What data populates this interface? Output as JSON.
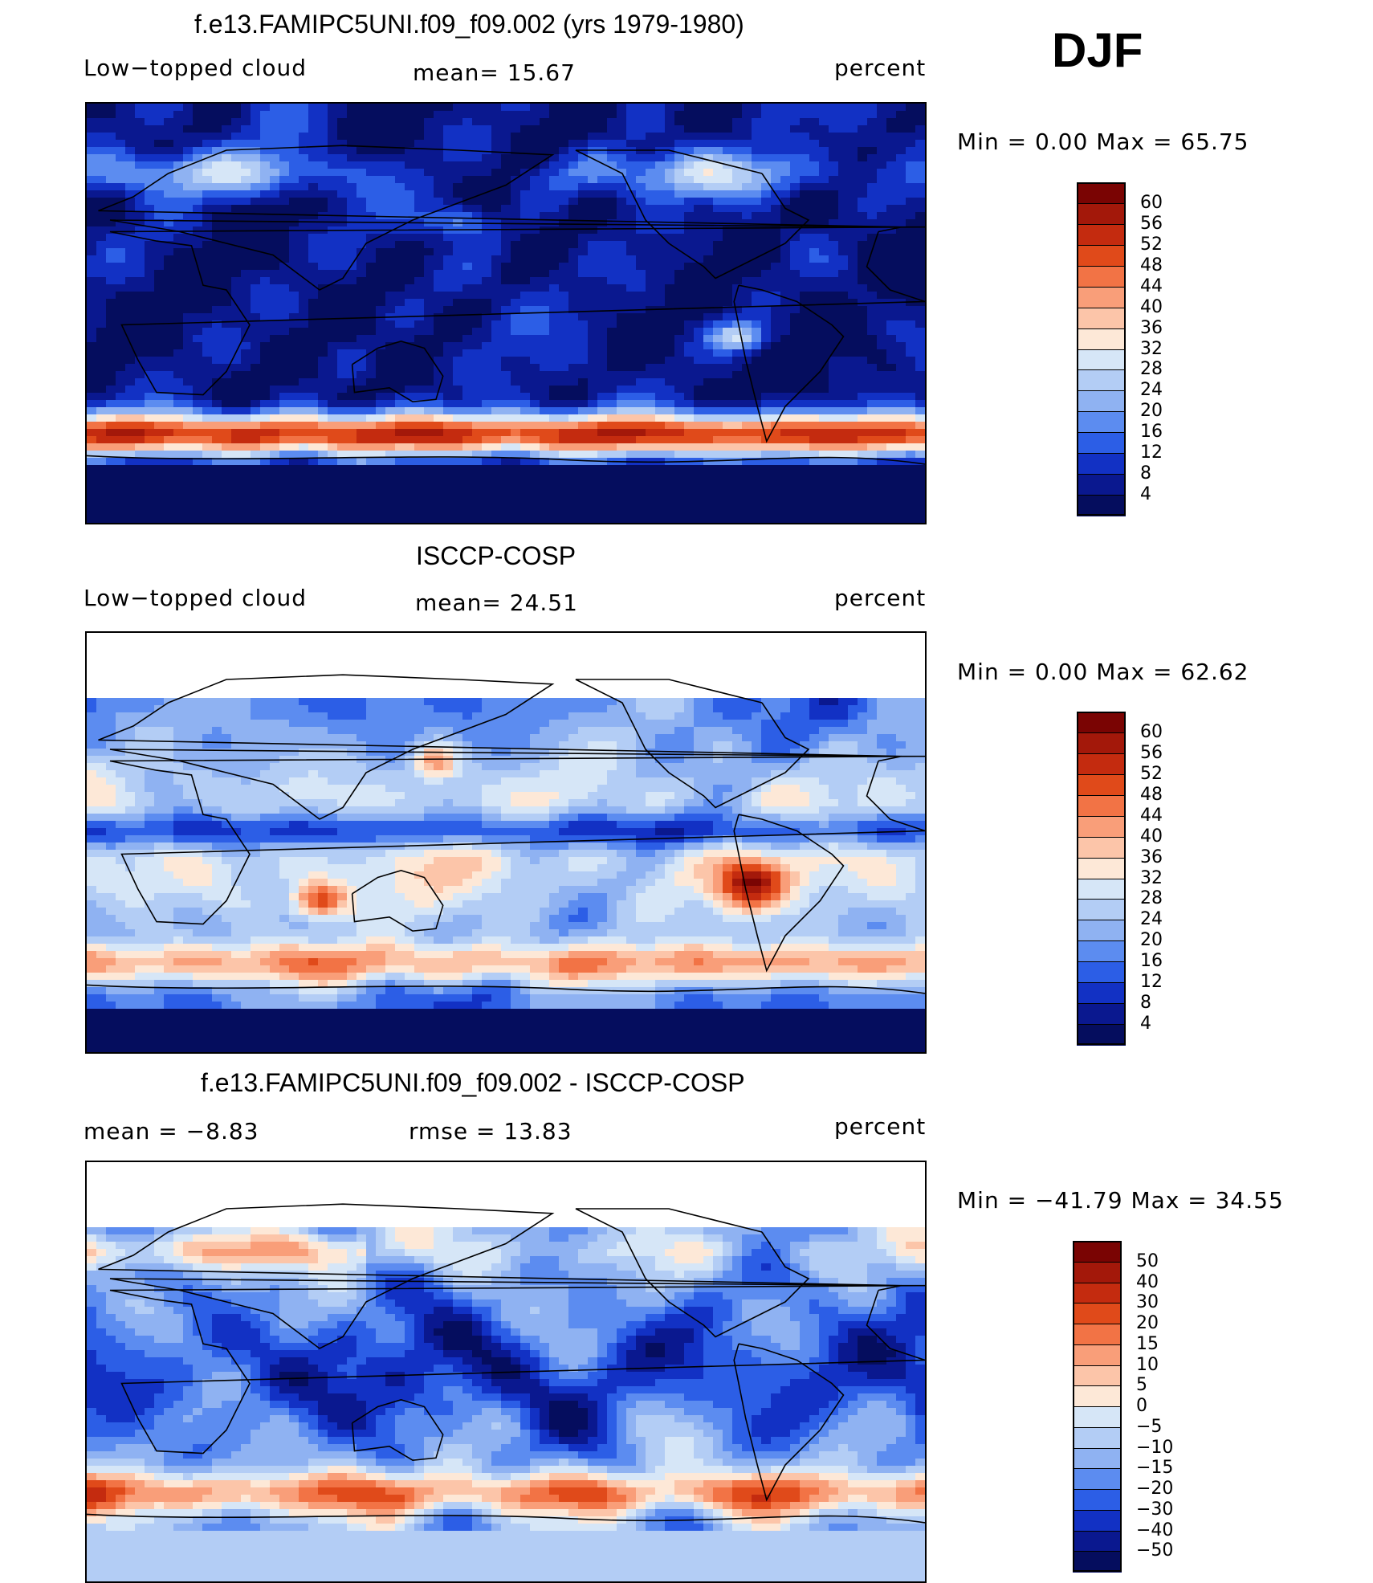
{
  "season": "DJF",
  "panels": [
    {
      "id": "model",
      "title": "f.e13.FAMIPC5UNI.f09_f09.002 (yrs 1979-1980)",
      "left_label": "Low−topped  cloud",
      "center_label": "mean=   15.67",
      "right_label": "percent",
      "minmax": "Min  =      0.00  Max  =     65.75",
      "colorbar": {
        "levels": [
          "60",
          "56",
          "52",
          "48",
          "44",
          "40",
          "36",
          "32",
          "28",
          "24",
          "20",
          "16",
          "12",
          "8",
          "4"
        ],
        "colors": [
          "#7a0403",
          "#a3180a",
          "#c42b0f",
          "#e04a1a",
          "#f27345",
          "#f99e79",
          "#fcc5a9",
          "#fde8d7",
          "#d6e6f7",
          "#b3cdf5",
          "#8fb2f2",
          "#5c8cf0",
          "#2c5ee6",
          "#1231c4",
          "#0a188f",
          "#050d5e"
        ]
      },
      "map_style": "model"
    },
    {
      "id": "obs",
      "title": "ISCCP-COSP",
      "left_label": "Low−topped  cloud",
      "center_label": "mean=   24.51",
      "right_label": "percent",
      "minmax": "Min  =      0.00  Max  =     62.62",
      "colorbar": {
        "levels": [
          "60",
          "56",
          "52",
          "48",
          "44",
          "40",
          "36",
          "32",
          "28",
          "24",
          "20",
          "16",
          "12",
          "8",
          "4"
        ],
        "colors": [
          "#7a0403",
          "#a3180a",
          "#c42b0f",
          "#e04a1a",
          "#f27345",
          "#f99e79",
          "#fcc5a9",
          "#fde8d7",
          "#d6e6f7",
          "#b3cdf5",
          "#8fb2f2",
          "#5c8cf0",
          "#2c5ee6",
          "#1231c4",
          "#0a188f",
          "#050d5e"
        ]
      },
      "map_style": "obs"
    },
    {
      "id": "diff",
      "title": "f.e13.FAMIPC5UNI.f09_f09.002 - ISCCP-COSP",
      "left_label": "mean  =    −8.83",
      "center_label": "rmse  =    13.83",
      "right_label": "percent",
      "minmax": "Min  =  −41.79  Max  =     34.55",
      "colorbar": {
        "levels": [
          "50",
          "40",
          "30",
          "20",
          "15",
          "10",
          "5",
          "0",
          "−5",
          "−10",
          "−15",
          "−20",
          "−30",
          "−40",
          "−50"
        ],
        "colors": [
          "#7a0403",
          "#a3180a",
          "#c42b0f",
          "#e04a1a",
          "#f27345",
          "#f99e79",
          "#fcc5a9",
          "#fde8d7",
          "#d6e6f7",
          "#b3cdf5",
          "#8fb2f2",
          "#5c8cf0",
          "#2c5ee6",
          "#1231c4",
          "#0a188f",
          "#050d5e"
        ]
      },
      "map_style": "diff"
    }
  ],
  "chart_data": [
    {
      "type": "heatmap",
      "title": "f.e13.FAMIPC5UNI.f09_f09.002 (yrs 1979-1980)",
      "variable": "Low−topped  cloud",
      "units": "percent",
      "mean": 15.67,
      "min": 0.0,
      "max": 65.75,
      "contour_levels": [
        4,
        8,
        12,
        16,
        20,
        24,
        28,
        32,
        36,
        40,
        44,
        48,
        52,
        56,
        60
      ]
    },
    {
      "type": "heatmap",
      "title": "ISCCP-COSP",
      "variable": "Low−topped  cloud",
      "units": "percent",
      "mean": 24.51,
      "min": 0.0,
      "max": 62.62,
      "contour_levels": [
        4,
        8,
        12,
        16,
        20,
        24,
        28,
        32,
        36,
        40,
        44,
        48,
        52,
        56,
        60
      ]
    },
    {
      "type": "heatmap",
      "title": "f.e13.FAMIPC5UNI.f09_f09.002 - ISCCP-COSP",
      "units": "percent",
      "mean": -8.83,
      "rmse": 13.83,
      "min": -41.79,
      "max": 34.55,
      "contour_levels": [
        -50,
        -40,
        -30,
        -20,
        -15,
        -10,
        -5,
        0,
        5,
        10,
        15,
        20,
        30,
        40,
        50
      ]
    }
  ]
}
